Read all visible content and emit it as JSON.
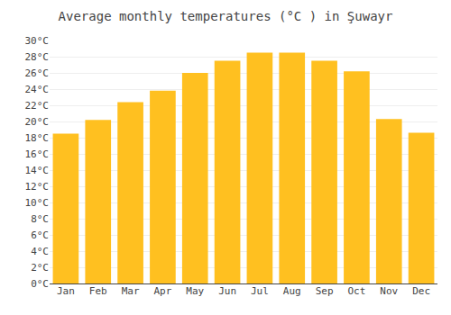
{
  "chart_data": {
    "type": "bar",
    "title": "Average monthly temperatures (°C ) in Şuwayr",
    "categories": [
      "Jan",
      "Feb",
      "Mar",
      "Apr",
      "May",
      "Jun",
      "Jul",
      "Aug",
      "Sep",
      "Oct",
      "Nov",
      "Dec"
    ],
    "values": [
      18.5,
      20.2,
      22.4,
      23.8,
      26.0,
      27.5,
      28.5,
      28.5,
      27.5,
      26.2,
      20.3,
      18.6
    ],
    "color": "#FFC020",
    "ylim": [
      0,
      30
    ],
    "yticks": [
      {
        "value": 0,
        "label": "0°C"
      },
      {
        "value": 2,
        "label": "2°C"
      },
      {
        "value": 4,
        "label": "4°C"
      },
      {
        "value": 6,
        "label": "6°C"
      },
      {
        "value": 8,
        "label": "8°C"
      },
      {
        "value": 10,
        "label": "10°C"
      },
      {
        "value": 12,
        "label": "12°C"
      },
      {
        "value": 14,
        "label": "14°C"
      },
      {
        "value": 16,
        "label": "16°C"
      },
      {
        "value": 18,
        "label": "18°C"
      },
      {
        "value": 20,
        "label": "20°C"
      },
      {
        "value": 22,
        "label": "22°C"
      },
      {
        "value": 24,
        "label": "24°C"
      },
      {
        "value": 26,
        "label": "26°C"
      },
      {
        "value": 28,
        "label": "28°C"
      },
      {
        "value": 30,
        "label": "30°C"
      }
    ],
    "grid": true
  }
}
